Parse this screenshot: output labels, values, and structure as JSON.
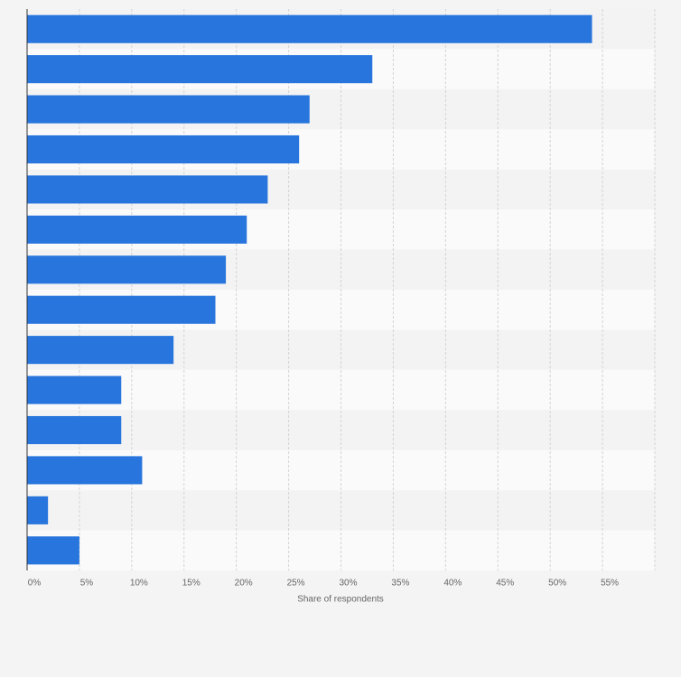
{
  "chart_data": {
    "type": "bar",
    "orientation": "horizontal",
    "x_label": "Share of respondents",
    "categories": [
      null,
      null,
      null,
      null,
      null,
      null,
      null,
      null,
      null,
      null,
      null,
      null,
      null,
      null
    ],
    "values": [
      54,
      33,
      27,
      26,
      23,
      21,
      19,
      18,
      14,
      9,
      9,
      11,
      2,
      5
    ],
    "color": "#2876dd",
    "xlim": [
      0,
      60
    ],
    "xticks": [
      {
        "value": 0,
        "label": "0%"
      },
      {
        "value": 5,
        "label": "5%"
      },
      {
        "value": 10,
        "label": "10%"
      },
      {
        "value": 15,
        "label": "15%"
      },
      {
        "value": 20,
        "label": "20%"
      },
      {
        "value": 25,
        "label": "25%"
      },
      {
        "value": 30,
        "label": "30%"
      },
      {
        "value": 35,
        "label": "35%"
      },
      {
        "value": 40,
        "label": "40%"
      },
      {
        "value": 45,
        "label": "45%"
      },
      {
        "value": 50,
        "label": "50%"
      },
      {
        "value": 55,
        "label": "55%"
      }
    ],
    "grid": true
  }
}
